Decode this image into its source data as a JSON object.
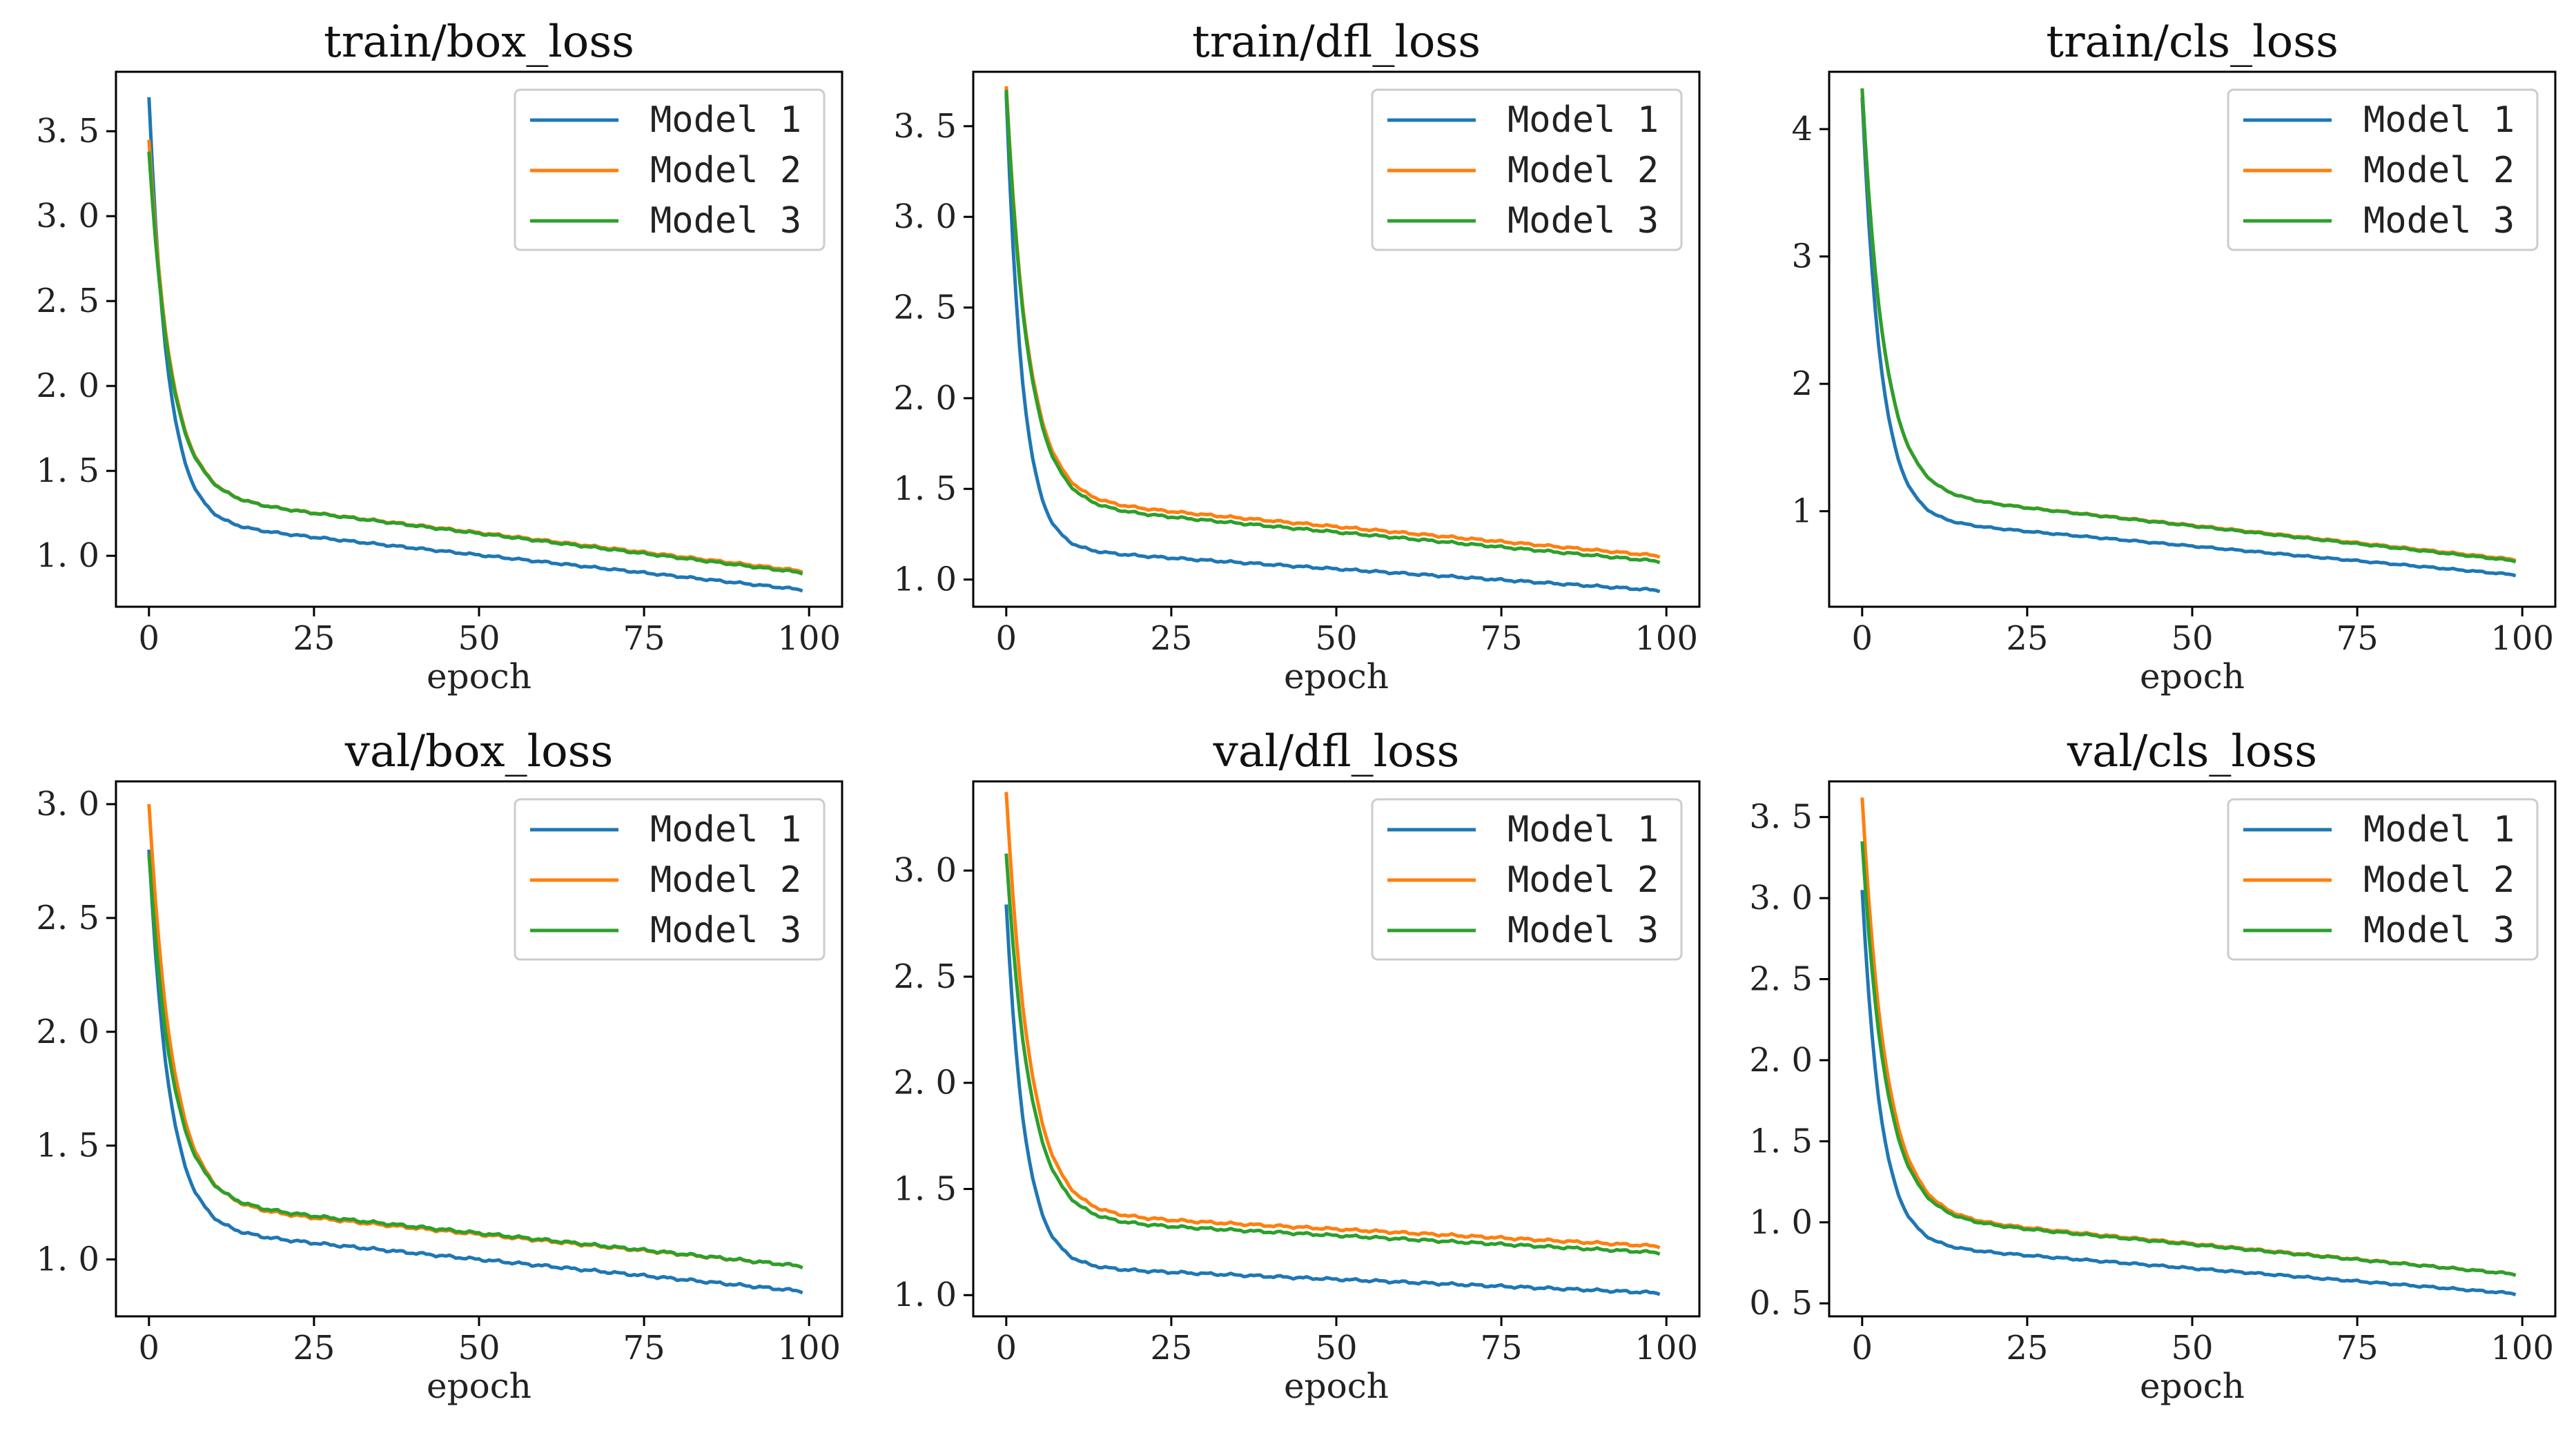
{
  "colors": {
    "model1": "#1f77b4",
    "model2": "#ff7f0e",
    "model3": "#2ca02c"
  },
  "chart_data": [
    {
      "type": "line",
      "title": "train/box_loss",
      "xlabel": "epoch",
      "ylabel": "",
      "xlim": [
        -5,
        105
      ],
      "ylim": [
        0.7,
        3.85
      ],
      "xticks": [
        0,
        25,
        50,
        75,
        100
      ],
      "yticks": [
        1.0,
        1.5,
        2.0,
        2.5,
        3.0,
        3.5
      ],
      "xtick_labels": [
        "0",
        "25",
        "50",
        "75",
        "100"
      ],
      "ytick_labels": [
        "1. 0",
        "1. 5",
        "2. 0",
        "2. 5",
        "3. 0",
        "3. 5"
      ],
      "legend": "top-right",
      "series": [
        {
          "name": "Model  1",
          "start": 3.7,
          "end": 0.8,
          "plateau": 1.18,
          "tail": 0.38,
          "k": 0.35
        },
        {
          "name": "Model  2",
          "start": 3.45,
          "end": 0.91,
          "plateau": 1.33,
          "tail": 0.42,
          "k": 0.3
        },
        {
          "name": "Model  3",
          "start": 3.38,
          "end": 0.9,
          "plateau": 1.33,
          "tail": 0.43,
          "k": 0.3
        }
      ]
    },
    {
      "type": "line",
      "title": "train/dfl_loss",
      "xlabel": "epoch",
      "ylabel": "",
      "xlim": [
        -5,
        105
      ],
      "ylim": [
        0.85,
        3.8
      ],
      "xticks": [
        0,
        25,
        50,
        75,
        100
      ],
      "yticks": [
        1.0,
        1.5,
        2.0,
        2.5,
        3.0,
        3.5
      ],
      "xtick_labels": [
        "0",
        "25",
        "50",
        "75",
        "100"
      ],
      "ytick_labels": [
        "1. 0",
        "1. 5",
        "2. 0",
        "2. 5",
        "3. 0",
        "3. 5"
      ],
      "legend": "top-right",
      "series": [
        {
          "name": "Model  1",
          "start": 3.68,
          "end": 0.94,
          "plateau": 1.16,
          "tail": 0.22,
          "k": 0.4
        },
        {
          "name": "Model  2",
          "start": 3.72,
          "end": 1.13,
          "plateau": 1.43,
          "tail": 0.3,
          "k": 0.3
        },
        {
          "name": "Model  3",
          "start": 3.7,
          "end": 1.1,
          "plateau": 1.4,
          "tail": 0.3,
          "k": 0.3
        }
      ]
    },
    {
      "type": "line",
      "title": "train/cls_loss",
      "xlabel": "epoch",
      "ylabel": "",
      "xlim": [
        -5,
        105
      ],
      "ylim": [
        0.25,
        4.45
      ],
      "xticks": [
        0,
        25,
        50,
        75,
        100
      ],
      "yticks": [
        1,
        2,
        3,
        4
      ],
      "xtick_labels": [
        "0",
        "25",
        "50",
        "75",
        "100"
      ],
      "ytick_labels": [
        "1",
        "2",
        "3",
        "4"
      ],
      "legend": "top-right",
      "series": [
        {
          "name": "Model  1",
          "start": 4.25,
          "end": 0.5,
          "plateau": 0.92,
          "tail": 0.42,
          "k": 0.35
        },
        {
          "name": "Model  2",
          "start": 4.3,
          "end": 0.62,
          "plateau": 1.12,
          "tail": 0.5,
          "k": 0.3
        },
        {
          "name": "Model  3",
          "start": 4.32,
          "end": 0.61,
          "plateau": 1.12,
          "tail": 0.51,
          "k": 0.3
        }
      ]
    },
    {
      "type": "line",
      "title": "val/box_loss",
      "xlabel": "epoch",
      "ylabel": "",
      "xlim": [
        -5,
        105
      ],
      "ylim": [
        0.75,
        3.1
      ],
      "xticks": [
        0,
        25,
        50,
        75,
        100
      ],
      "yticks": [
        1.0,
        1.5,
        2.0,
        2.5,
        3.0
      ],
      "xtick_labels": [
        "0",
        "25",
        "50",
        "75",
        "100"
      ],
      "ytick_labels": [
        "1. 0",
        "1. 5",
        "2. 0",
        "2. 5",
        "3. 0"
      ],
      "legend": "top-right",
      "series": [
        {
          "name": "Model  1",
          "start": 2.8,
          "end": 0.86,
          "plateau": 1.12,
          "tail": 0.26,
          "k": 0.32
        },
        {
          "name": "Model  2",
          "start": 3.0,
          "end": 0.97,
          "plateau": 1.23,
          "tail": 0.26,
          "k": 0.28
        },
        {
          "name": "Model  3",
          "start": 2.78,
          "end": 0.97,
          "plateau": 1.24,
          "tail": 0.27,
          "k": 0.28
        }
      ]
    },
    {
      "type": "line",
      "title": "val/dfl_loss",
      "xlabel": "epoch",
      "ylabel": "",
      "xlim": [
        -5,
        105
      ],
      "ylim": [
        0.9,
        3.42
      ],
      "xticks": [
        0,
        25,
        50,
        75,
        100
      ],
      "yticks": [
        1.0,
        1.5,
        2.0,
        2.5,
        3.0
      ],
      "xtick_labels": [
        "0",
        "25",
        "50",
        "75",
        "100"
      ],
      "ytick_labels": [
        "1. 0",
        "1. 5",
        "2. 0",
        "2. 5",
        "3. 0"
      ],
      "legend": "top-right",
      "series": [
        {
          "name": "Model  1",
          "start": 2.84,
          "end": 1.01,
          "plateau": 1.13,
          "tail": 0.12,
          "k": 0.35
        },
        {
          "name": "Model  2",
          "start": 3.37,
          "end": 1.23,
          "plateau": 1.38,
          "tail": 0.15,
          "k": 0.28
        },
        {
          "name": "Model  3",
          "start": 3.08,
          "end": 1.2,
          "plateau": 1.35,
          "tail": 0.15,
          "k": 0.28
        }
      ]
    },
    {
      "type": "line",
      "title": "val/cls_loss",
      "xlabel": "epoch",
      "ylabel": "",
      "xlim": [
        -5,
        105
      ],
      "ylim": [
        0.42,
        3.72
      ],
      "xticks": [
        0,
        25,
        50,
        75,
        100
      ],
      "yticks": [
        0.5,
        1.0,
        1.5,
        2.0,
        2.5,
        3.0,
        3.5
      ],
      "xtick_labels": [
        "0",
        "25",
        "50",
        "75",
        "100"
      ],
      "ytick_labels": [
        "0. 5",
        "1. 0",
        "1. 5",
        "2. 0",
        "2. 5",
        "3. 0",
        "3. 5"
      ],
      "legend": "top-right",
      "series": [
        {
          "name": "Model  1",
          "start": 3.05,
          "end": 0.56,
          "plateau": 0.85,
          "tail": 0.29,
          "k": 0.35
        },
        {
          "name": "Model  2",
          "start": 3.62,
          "end": 0.68,
          "plateau": 1.03,
          "tail": 0.35,
          "k": 0.28
        },
        {
          "name": "Model  3",
          "start": 3.35,
          "end": 0.68,
          "plateau": 1.02,
          "tail": 0.34,
          "k": 0.28
        }
      ]
    }
  ]
}
